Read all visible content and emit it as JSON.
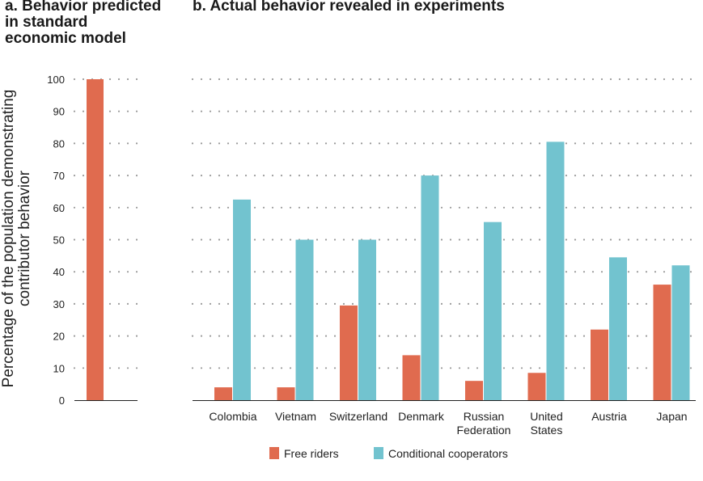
{
  "chart_data": [
    {
      "type": "bar",
      "title": "a. Behavior predicted in standard economic model",
      "title_lines": [
        "a. Behavior predicted",
        "in standard",
        "economic model"
      ],
      "ylabel": "Percentage of the population demonstrating contributor behavior",
      "ylabel_lines": [
        "Percentage of the population demonstrating",
        "contributor behavior"
      ],
      "ylim": [
        0,
        100
      ],
      "yticks": [
        0,
        10,
        20,
        30,
        40,
        50,
        60,
        70,
        80,
        90,
        100
      ],
      "grid": true,
      "series": [
        {
          "values": [
            100
          ],
          "color": "#E06B4F"
        }
      ]
    },
    {
      "type": "bar",
      "title": "b. Actual behavior revealed in experiments",
      "ylim": [
        0,
        100
      ],
      "grid": true,
      "categories": [
        [
          "Colombia"
        ],
        [
          "Vietnam"
        ],
        [
          "Switzerland"
        ],
        [
          "Denmark"
        ],
        [
          "Russian",
          "Federation"
        ],
        [
          "United",
          "States"
        ],
        [
          "Austria"
        ],
        [
          "Japan"
        ]
      ],
      "series": [
        {
          "name": "Free riders",
          "color": "#E06B4F",
          "values": [
            4,
            4,
            29.5,
            14,
            6,
            8.5,
            22,
            36
          ]
        },
        {
          "name": "Conditional cooperators",
          "color": "#72C3CF",
          "values": [
            62.5,
            50,
            50,
            70,
            55.5,
            80.5,
            44.5,
            42
          ]
        }
      ],
      "legend_position": "bottom-center"
    }
  ]
}
